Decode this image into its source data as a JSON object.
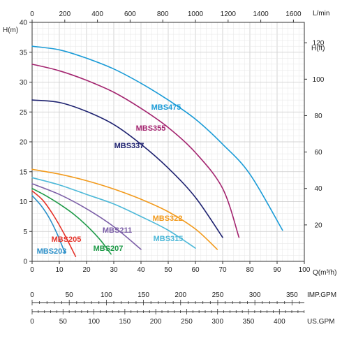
{
  "chart_data": {
    "type": "line",
    "units": {
      "left_y": "H(m)",
      "right_y": "H(ft)",
      "x_bottom": "Q(m³/h)",
      "x_top": "L/min",
      "scale_imp": "IMP.GPM",
      "scale_us": "US.GPM"
    },
    "axes": {
      "x_m3h": {
        "range": [
          0,
          100
        ],
        "ticks": [
          "0",
          "10",
          "20",
          "30",
          "40",
          "50",
          "60",
          "70",
          "80",
          "90",
          "100"
        ]
      },
      "y_m": {
        "range": [
          0,
          40
        ],
        "ticks": [
          "0",
          "5",
          "10",
          "15",
          "20",
          "25",
          "30",
          "35",
          "40"
        ]
      },
      "x_lmin": {
        "range": [
          0,
          1666.67
        ],
        "ticks": [
          "0",
          "200",
          "400",
          "600",
          "800",
          "1000",
          "1200",
          "1400",
          "1600"
        ]
      },
      "y_ft": {
        "range": [
          0,
          131.2
        ],
        "ticks": [
          "20",
          "40",
          "60",
          "80",
          "100",
          "120"
        ]
      },
      "imp_gpm": {
        "range": [
          0,
          366.6
        ],
        "ticks": [
          "0",
          "50",
          "100",
          "150",
          "200",
          "250",
          "300",
          "350"
        ]
      },
      "us_gpm": {
        "range": [
          0,
          440.3
        ],
        "ticks": [
          "0",
          "50",
          "100",
          "150",
          "200",
          "250",
          "300",
          "350",
          "400"
        ]
      }
    },
    "grid": true,
    "series": [
      {
        "name": "MBS475",
        "color": "#1a9bd7",
        "x": [
          0,
          10,
          20,
          30,
          40,
          50,
          60,
          70,
          80,
          92
        ],
        "y": [
          36,
          35.4,
          34,
          32.2,
          29.8,
          27,
          23.8,
          19.6,
          14.6,
          5.2
        ]
      },
      {
        "name": "MBS355",
        "color": "#a3246f",
        "x": [
          0,
          10,
          20,
          30,
          40,
          50,
          60,
          70,
          76
        ],
        "y": [
          33,
          31.9,
          30.3,
          28.3,
          25.6,
          22.4,
          18.2,
          12.2,
          4
        ]
      },
      {
        "name": "MBS337",
        "color": "#1b1f6e",
        "x": [
          0,
          10,
          20,
          30,
          40,
          50,
          60,
          70
        ],
        "y": [
          27,
          26.6,
          25.1,
          22.9,
          19.6,
          15.6,
          10.7,
          4
        ]
      },
      {
        "name": "MBS322",
        "color": "#f29a1c",
        "x": [
          0,
          10,
          20,
          30,
          40,
          50,
          60,
          68
        ],
        "y": [
          15.4,
          14.6,
          13.5,
          12.1,
          10.4,
          8.3,
          5.4,
          2
        ]
      },
      {
        "name": "MBS315",
        "color": "#4cb8d8",
        "x": [
          0,
          10,
          20,
          30,
          40,
          50,
          60
        ],
        "y": [
          14,
          12.8,
          11.2,
          9.6,
          7.5,
          5.2,
          2.2
        ]
      },
      {
        "name": "MBS211",
        "color": "#7b5ea7",
        "x": [
          0,
          10,
          20,
          30,
          40
        ],
        "y": [
          13,
          11.2,
          8.8,
          5.8,
          2
        ]
      },
      {
        "name": "MBS207",
        "color": "#1e9a48",
        "x": [
          0,
          5,
          10,
          15,
          20,
          25,
          29
        ],
        "y": [
          12.2,
          11,
          9.6,
          8,
          6,
          3.6,
          1.2
        ]
      },
      {
        "name": "MBS205",
        "color": "#e5332a",
        "x": [
          0,
          4,
          8,
          12,
          16
        ],
        "y": [
          11.8,
          10.2,
          7.6,
          4.4,
          0.8
        ]
      },
      {
        "name": "MBS203",
        "color": "#2b8fc8",
        "x": [
          0,
          3,
          6,
          9,
          12
        ],
        "y": [
          11,
          9.5,
          7.5,
          4.8,
          1.5
        ]
      }
    ]
  }
}
